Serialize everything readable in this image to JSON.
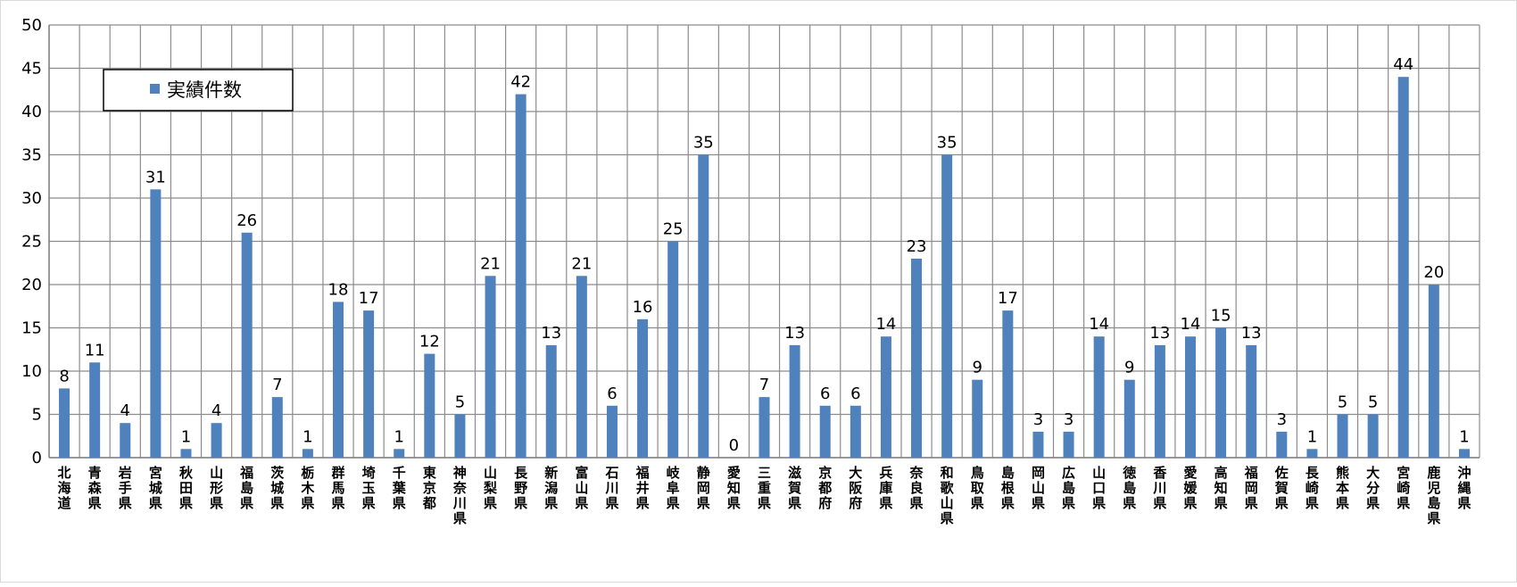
{
  "chart_data": {
    "type": "bar",
    "title": "",
    "xlabel": "",
    "ylabel": "",
    "ylim": [
      0,
      50
    ],
    "ytick_step": 5,
    "grid": true,
    "legend_position": "top-left",
    "categories": [
      "北海道",
      "青森県",
      "岩手県",
      "宮城県",
      "秋田県",
      "山形県",
      "福島県",
      "茨城県",
      "栃木県",
      "群馬県",
      "埼玉県",
      "千葉県",
      "東京都",
      "神奈川県",
      "山梨県",
      "長野県",
      "新潟県",
      "富山県",
      "石川県",
      "福井県",
      "岐阜県",
      "静岡県",
      "愛知県",
      "三重県",
      "滋賀県",
      "京都府",
      "大阪府",
      "兵庫県",
      "奈良県",
      "和歌山県",
      "鳥取県",
      "島根県",
      "岡山県",
      "広島県",
      "山口県",
      "徳島県",
      "香川県",
      "愛媛県",
      "高知県",
      "福岡県",
      "佐賀県",
      "長崎県",
      "熊本県",
      "大分県",
      "宮崎県",
      "鹿児島県",
      "沖縄県"
    ],
    "series": [
      {
        "name": "実績件数",
        "color": "#4f81bd",
        "values": [
          8,
          11,
          4,
          31,
          1,
          4,
          26,
          7,
          1,
          18,
          17,
          1,
          12,
          5,
          21,
          42,
          13,
          21,
          6,
          16,
          25,
          35,
          0,
          7,
          13,
          6,
          6,
          14,
          23,
          35,
          9,
          17,
          3,
          3,
          14,
          9,
          13,
          14,
          15,
          13,
          3,
          1,
          5,
          5,
          44,
          20,
          1
        ]
      }
    ]
  }
}
